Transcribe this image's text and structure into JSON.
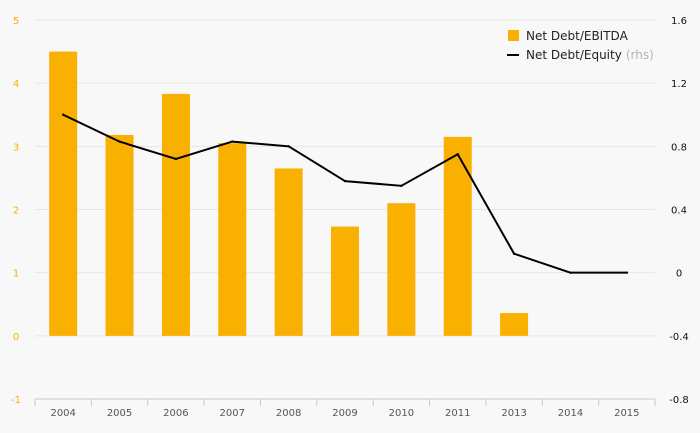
{
  "chart_data": {
    "type": "bar",
    "categories": [
      "2004",
      "2005",
      "2006",
      "2007",
      "2008",
      "2009",
      "2010",
      "2011",
      "2013",
      "2014",
      "2015"
    ],
    "series": [
      {
        "name": "Net Debt/EBITDA",
        "type": "bar",
        "axis": "left",
        "color": "#f9b000",
        "values": [
          4.5,
          3.18,
          3.83,
          3.05,
          2.65,
          1.73,
          2.1,
          3.15,
          0.36,
          null,
          null
        ]
      },
      {
        "name": "Net Debt/Equity",
        "type": "line",
        "axis": "right",
        "color": "#000000",
        "values": [
          1.0,
          0.83,
          0.72,
          0.83,
          0.8,
          0.58,
          0.55,
          0.75,
          0.12,
          0.0,
          0.0
        ]
      }
    ],
    "legend": {
      "position": "top-right",
      "items": [
        {
          "label": "Net Debt/EBITDA",
          "note": ""
        },
        {
          "label": "Net Debt/Equity",
          "note": "(rhs)"
        }
      ]
    },
    "y_left": {
      "ylim": [
        -1,
        5
      ],
      "ticks": [
        "-1",
        "0",
        "1",
        "2",
        "3",
        "4",
        "5"
      ],
      "color": "#f9b000"
    },
    "y_right": {
      "ylim": [
        -0.8,
        1.6
      ],
      "ticks": [
        "-0.8",
        "-0.4",
        "0",
        "0.4",
        "0.8",
        "1.2",
        "1.6"
      ],
      "color": "#000000"
    },
    "grid": true,
    "title": "",
    "xlabel": "",
    "ylabel": ""
  }
}
